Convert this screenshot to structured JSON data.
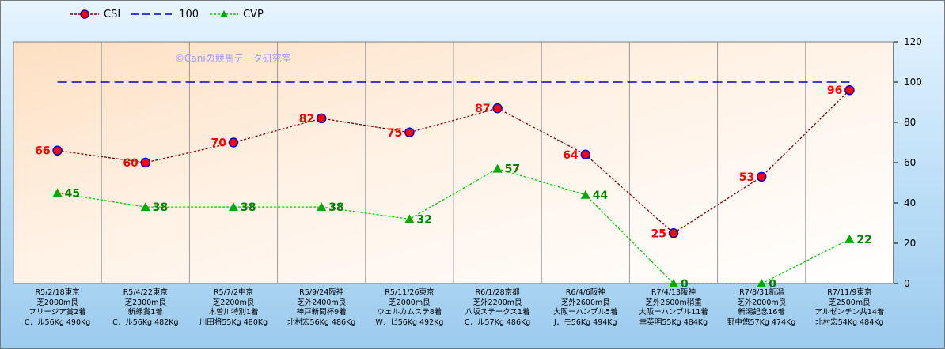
{
  "chart_data": {
    "type": "line",
    "watermark": "©Caniの競馬データ研究室",
    "ylim": [
      0,
      120
    ],
    "yticks": [
      "0",
      "20",
      "40",
      "60",
      "80",
      "100",
      "120"
    ],
    "categories": [
      [
        "R5/2/18東京",
        "芝2000m良",
        "フリージア賞2着",
        "C．ル56Kg 490Kg"
      ],
      [
        "R5/4/22東京",
        "芝2300m良",
        "新緑賞1着",
        "C．ル56Kg 482Kg"
      ],
      [
        "R5/7/2中京",
        "芝2200m良",
        "木曽川特別1着",
        "川田将55Kg 480Kg"
      ],
      [
        "R5/9/24阪神",
        "芝外2400m良",
        "神戸新聞杯9着",
        "北村宏56Kg 486Kg"
      ],
      [
        "R5/11/26東京",
        "芝2000m良",
        "ウェルカムステ8着",
        "W．ビ56Kg 492Kg"
      ],
      [
        "R6/1/28京都",
        "芝外2200m良",
        "八坂ステークス1着",
        "C．ル57Kg 486Kg"
      ],
      [
        "R6/4/6阪神",
        "芝外2600m良",
        "大阪ーハンブル5着",
        "J．モ56Kg 494Kg"
      ],
      [
        "R7/4/13阪神",
        "芝外2600m稍重",
        "大阪ーハンブル11着",
        "幸英明55Kg 484Kg"
      ],
      [
        "R7/8/31新潟",
        "芝外2000m良",
        "新潟記念16着",
        "野中悠57Kg 474Kg"
      ],
      [
        "R7/11/9東京",
        "芝2500m良",
        "アルゼンチン共14着",
        "北村宏54Kg 484Kg"
      ]
    ],
    "series": [
      {
        "name": "CSI",
        "values": [
          66,
          60,
          70,
          82,
          75,
          87,
          64,
          25,
          53,
          96
        ],
        "color": "#800000",
        "label_color": "#ff0000",
        "marker": "circle",
        "marker_fill": "#ff0000",
        "marker_stroke": "#0000cc",
        "line": "dotted"
      },
      {
        "name": "100",
        "values": [
          100,
          100,
          100,
          100,
          100,
          100,
          100,
          100,
          100,
          100
        ],
        "color": "#0000cc",
        "line": "dashed",
        "marker": "none"
      },
      {
        "name": "CVP",
        "values": [
          45,
          38,
          38,
          38,
          32,
          57,
          44,
          0,
          0,
          22
        ],
        "color": "#00cc00",
        "label_color": "#008000",
        "marker": "triangle",
        "marker_fill": "#00aa00",
        "line": "dotted"
      }
    ],
    "grid": true,
    "legend": "top-left"
  }
}
